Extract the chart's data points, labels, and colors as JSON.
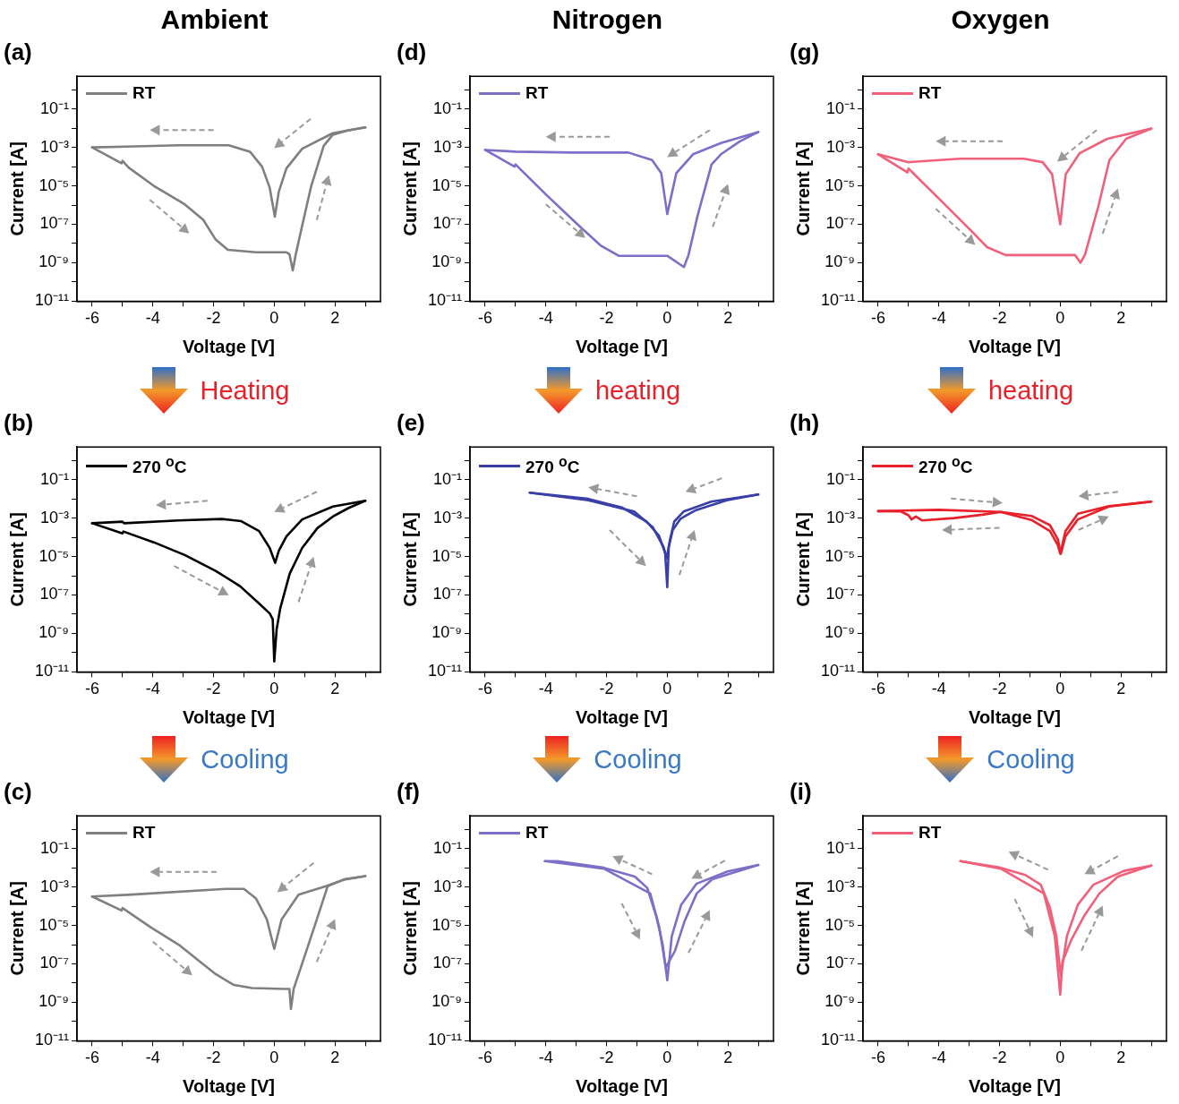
{
  "chart_data": [
    {
      "type": "line",
      "title": "(a)",
      "xlabel": "Voltage [V]",
      "ylabel": "Current [A]",
      "annotations": [
        "Ambient"
      ],
      "log": "y",
      "legend": "top left",
      "xlim": [
        -6.5,
        3.5
      ],
      "xticks": [
        -6,
        {
          "value": -5,
          "label": null
        },
        -4,
        {
          "value": -3,
          "label": null
        },
        -2,
        {
          "value": -1,
          "label": null
        },
        0,
        {
          "value": 1,
          "label": null
        },
        2,
        {
          "value": 3,
          "label": null
        }
      ],
      "ylim": [
        1e-11,
        5
      ],
      "yticks": [
        {
          "value": 1e-11,
          "label": "10⁻¹¹"
        },
        {
          "value": 1e-10,
          "label": null
        },
        {
          "value": 1e-09,
          "label": "10⁻⁹"
        },
        {
          "value": 1e-08,
          "label": null
        },
        {
          "value": 1e-07,
          "label": "10⁻⁷"
        },
        {
          "value": 1e-06,
          "label": null
        },
        {
          "value": 1e-05,
          "label": "10⁻⁵"
        },
        {
          "value": 0.0001,
          "label": null
        },
        {
          "value": 0.001,
          "label": "10⁻³"
        },
        {
          "value": 0.01,
          "label": null
        },
        {
          "value": 0.1,
          "label": "10⁻¹"
        },
        {
          "value": 1,
          "label": null
        }
      ],
      "series": [
        {
          "name": "RT",
          "color": "#7f7f7f",
          "x": [
            3,
            1.93,
            0.92,
            0.4,
            0.15,
            0.02,
            -0.15,
            -0.4,
            -0.8,
            -1.5,
            -3.15,
            -4.9,
            -6
          ],
          "values": [
            0.011,
            0.0055,
            0.00085,
            8e-05,
            5e-06,
            2.5e-07,
            8e-06,
            0.0001,
            0.0006,
            0.0013,
            0.0013,
            0.0011,
            0.001
          ]
        },
        {
          "color": "#7f7f7f",
          "x": [
            -6,
            -5.03,
            -5,
            -4.8,
            -3.97,
            -2.95,
            -2.34,
            -1.93,
            -1.53,
            -0.6,
            0.4,
            0.5,
            0.61,
            0.71,
            0.92,
            1.22,
            1.63,
            1.93,
            2.44,
            3
          ],
          "values": [
            0.001,
            0.00015,
            0.0002,
            9e-05,
            1e-05,
            1.1e-06,
            1.7e-07,
            1.6e-08,
            4.7e-09,
            3.5e-09,
            3.5e-09,
            2.8e-09,
            4e-10,
            2.8e-09,
            8.5e-08,
            1e-05,
            0.0012,
            0.0046,
            0.0077,
            0.011
          ]
        }
      ]
    },
    {
      "type": "line",
      "title": "(d)",
      "xlabel": "Voltage [V]",
      "ylabel": "Current [A]",
      "annotations": [
        "Nitrogen"
      ],
      "log": "y",
      "legend": "top left",
      "xlim": [
        -6.5,
        3.5
      ],
      "xticks": [
        -6,
        {
          "value": -5,
          "label": null
        },
        -4,
        {
          "value": -3,
          "label": null
        },
        -2,
        {
          "value": -1,
          "label": null
        },
        0,
        {
          "value": 1,
          "label": null
        },
        2,
        {
          "value": 3,
          "label": null
        }
      ],
      "ylim": [
        1e-11,
        5
      ],
      "yticks": [
        {
          "value": 1e-11,
          "label": "10⁻¹¹"
        },
        {
          "value": 1e-10,
          "label": null
        },
        {
          "value": 1e-09,
          "label": "10⁻⁹"
        },
        {
          "value": 1e-08,
          "label": null
        },
        {
          "value": 1e-07,
          "label": "10⁻⁷"
        },
        {
          "value": 1e-06,
          "label": null
        },
        {
          "value": 1e-05,
          "label": "10⁻⁵"
        },
        {
          "value": 0.0001,
          "label": null
        },
        {
          "value": 0.001,
          "label": "10⁻³"
        },
        {
          "value": 0.01,
          "label": null
        },
        {
          "value": 0.1,
          "label": "10⁻¹"
        },
        {
          "value": 1,
          "label": null
        }
      ],
      "series": [
        {
          "name": "RT",
          "color": "#7b6fc8",
          "x": [
            3,
            1.77,
            0.85,
            0.3,
            0,
            -0.2,
            -0.5,
            -1.28,
            -3.1,
            -5,
            -6
          ],
          "values": [
            0.0063,
            0.0017,
            0.00044,
            4.6e-05,
            3.4e-07,
            4.6e-05,
            0.00022,
            0.00054,
            0.00054,
            0.0006,
            0.00074
          ]
        },
        {
          "color": "#7b6fc8",
          "x": [
            -6,
            -5.03,
            -5,
            -4,
            -2.96,
            -2.2,
            -1.6,
            0,
            0.55,
            0.7,
            1,
            1.46,
            1.77,
            2.38,
            3
          ],
          "values": [
            0.00074,
            0.0001,
            0.00013,
            3.6e-06,
            1e-07,
            8e-09,
            2.3e-09,
            2.3e-09,
            6e-10,
            2.5e-09,
            2.8e-07,
            0.00013,
            0.00044,
            0.002,
            0.0063
          ]
        }
      ]
    },
    {
      "type": "line",
      "title": "(g)",
      "xlabel": "Voltage [V]",
      "ylabel": "Current [A]",
      "annotations": [
        "Oxygen"
      ],
      "log": "y",
      "legend": "top left",
      "xlim": [
        -6.5,
        3.5
      ],
      "xticks": [
        -6,
        {
          "value": -5,
          "label": null
        },
        -4,
        {
          "value": -3,
          "label": null
        },
        -2,
        {
          "value": -1,
          "label": null
        },
        0,
        {
          "value": 1,
          "label": null
        },
        2,
        {
          "value": 3,
          "label": null
        }
      ],
      "ylim": [
        1e-11,
        5
      ],
      "yticks": [
        {
          "value": 1e-11,
          "label": "10⁻¹¹"
        },
        {
          "value": 1e-10,
          "label": null
        },
        {
          "value": 1e-09,
          "label": "10⁻⁹"
        },
        {
          "value": 1e-08,
          "label": null
        },
        {
          "value": 1e-07,
          "label": "10⁻⁷"
        },
        {
          "value": 1e-06,
          "label": null
        },
        {
          "value": 1e-05,
          "label": "10⁻⁵"
        },
        {
          "value": 0.0001,
          "label": null
        },
        {
          "value": 0.001,
          "label": "10⁻³"
        },
        {
          "value": 0.01,
          "label": null
        },
        {
          "value": 0.1,
          "label": "10⁻¹"
        },
        {
          "value": 1,
          "label": null
        }
      ],
      "series": [
        {
          "name": "RT",
          "color": "#f0607a",
          "x": [
            3,
            1.55,
            0.64,
            0.18,
            0,
            -0.27,
            -0.58,
            -1.2,
            -3.3,
            -5,
            -6
          ],
          "values": [
            0.0095,
            0.0028,
            0.0005,
            4e-05,
            1e-07,
            4e-05,
            0.00017,
            0.00026,
            0.00026,
            0.00017,
            0.00044
          ]
        },
        {
          "color": "#f0607a",
          "x": [
            -6,
            -5.03,
            -5,
            -3.93,
            -3.02,
            -2.4,
            -1.8,
            0.49,
            0.67,
            0.82,
            1.25,
            1.62,
            2.17,
            3
          ],
          "values": [
            0.00044,
            5e-05,
            8e-05,
            1.7e-06,
            6.3e-08,
            6.3e-09,
            2.5e-09,
            2.5e-09,
            1e-09,
            2.8e-09,
            7.9e-07,
            0.00022,
            0.0028,
            0.0095
          ]
        }
      ]
    },
    {
      "type": "line",
      "title": "(b)",
      "xlabel": "Voltage [V]",
      "ylabel": "Current [A]",
      "annotations": [
        "Heating"
      ],
      "log": "y",
      "legend": "top left",
      "xlim": [
        -6.5,
        3.5
      ],
      "xticks": [
        -6,
        {
          "value": -5,
          "label": null
        },
        -4,
        {
          "value": -3,
          "label": null
        },
        -2,
        {
          "value": -1,
          "label": null
        },
        0,
        {
          "value": 1,
          "label": null
        },
        2,
        {
          "value": 3,
          "label": null
        }
      ],
      "ylim": [
        1e-11,
        5
      ],
      "yticks": [
        {
          "value": 1e-11,
          "label": "10⁻¹¹"
        },
        {
          "value": 1e-10,
          "label": null
        },
        {
          "value": 1e-09,
          "label": "10⁻⁹"
        },
        {
          "value": 1e-08,
          "label": null
        },
        {
          "value": 1e-07,
          "label": "10⁻⁷"
        },
        {
          "value": 1e-06,
          "label": null
        },
        {
          "value": 1e-05,
          "label": "10⁻⁵"
        },
        {
          "value": 0.0001,
          "label": null
        },
        {
          "value": 0.001,
          "label": "10⁻³"
        },
        {
          "value": 0.01,
          "label": null
        },
        {
          "value": 0.1,
          "label": "10⁻¹"
        },
        {
          "value": 1,
          "label": null
        }
      ],
      "series": [
        {
          "name": "270 $^{o}$C",
          "color": "#000000",
          "x": [
            3,
            1.93,
            0.92,
            0.4,
            0.15,
            0.03,
            -0.15,
            -0.5,
            -1.1,
            -1.73,
            -3.15,
            -4.95,
            -5,
            -6
          ],
          "values": [
            0.008,
            0.004,
            0.00085,
            0.00011,
            2e-05,
            4.7e-06,
            2.8e-05,
            0.00021,
            0.0007,
            0.0009,
            0.00076,
            0.00054,
            0.00065,
            0.00054
          ]
        },
        {
          "color": "#000000",
          "x": [
            -6,
            -5,
            -4.97,
            -3.97,
            -2.95,
            -1.93,
            -1.12,
            -0.5,
            -0.15,
            -0.05,
            0,
            0.08,
            0.2,
            0.51,
            0.92,
            1.42,
            1.93,
            2.44,
            3
          ],
          "values": [
            0.00054,
            0.00016,
            0.0002,
            5.5e-05,
            1.2e-05,
            1.8e-06,
            2.8e-07,
            3.6e-08,
            1.1e-08,
            5.5e-09,
            3.5e-11,
            1.7e-09,
            2.1e-08,
            1.3e-06,
            2.8e-05,
            0.0003,
            0.0012,
            0.0033,
            0.008
          ]
        }
      ]
    },
    {
      "type": "line",
      "title": "(e)",
      "xlabel": "Voltage [V]",
      "ylabel": "Current [A]",
      "annotations": [
        "heating"
      ],
      "log": "y",
      "legend": "top left",
      "xlim": [
        -6.5,
        3.5
      ],
      "xticks": [
        -6,
        {
          "value": -5,
          "label": null
        },
        -4,
        {
          "value": -3,
          "label": null
        },
        -2,
        {
          "value": -1,
          "label": null
        },
        0,
        {
          "value": 1,
          "label": null
        },
        2,
        {
          "value": 3,
          "label": null
        }
      ],
      "ylim": [
        1e-11,
        5
      ],
      "yticks": [
        {
          "value": 1e-11,
          "label": "10⁻¹¹"
        },
        {
          "value": 1e-10,
          "label": null
        },
        {
          "value": 1e-09,
          "label": "10⁻⁹"
        },
        {
          "value": 1e-08,
          "label": null
        },
        {
          "value": 1e-07,
          "label": "10⁻⁷"
        },
        {
          "value": 1e-06,
          "label": null
        },
        {
          "value": 1e-05,
          "label": "10⁻⁵"
        },
        {
          "value": 0.0001,
          "label": null
        },
        {
          "value": 0.001,
          "label": "10⁻³"
        },
        {
          "value": 0.01,
          "label": null
        },
        {
          "value": 0.1,
          "label": "10⁻¹"
        },
        {
          "value": 1,
          "label": null
        }
      ],
      "series": [
        {
          "name": "270 $^{o}$C",
          "color": "#3a3fa8",
          "x": [
            3,
            1.96,
            0.95,
            0.44,
            0.18,
            0.05,
            0,
            -0.07,
            -0.27,
            -0.68,
            -1.5,
            -2.6,
            -4.53
          ],
          "values": [
            0.017,
            0.0085,
            0.0026,
            0.00093,
            0.00024,
            3.1e-05,
            2.6e-07,
            1.5e-05,
            0.00012,
            0.00066,
            0.0036,
            0.01,
            0.021
          ]
        },
        {
          "color": "#3a3fa8",
          "x": [
            -4.53,
            -2.6,
            -1.09,
            -0.48,
            -0.12,
            -0.02,
            0.08,
            0.23,
            0.54,
            1.45,
            3
          ],
          "values": [
            0.021,
            0.0085,
            0.0022,
            0.00034,
            3.1e-05,
            8e-06,
            6.3e-05,
            0.00066,
            0.0022,
            0.0072,
            0.017
          ]
        }
      ]
    },
    {
      "type": "line",
      "title": "(h)",
      "xlabel": "Voltage [V]",
      "ylabel": "Current [A]",
      "annotations": [
        "heating"
      ],
      "log": "y",
      "legend": "top left",
      "xlim": [
        -6.5,
        3.5
      ],
      "xticks": [
        -6,
        {
          "value": -5,
          "label": null
        },
        -4,
        {
          "value": -3,
          "label": null
        },
        -2,
        {
          "value": -1,
          "label": null
        },
        0,
        {
          "value": 1,
          "label": null
        },
        2,
        {
          "value": 3,
          "label": null
        }
      ],
      "ylim": [
        1e-11,
        5
      ],
      "yticks": [
        {
          "value": 1e-11,
          "label": "10⁻¹¹"
        },
        {
          "value": 1e-10,
          "label": null
        },
        {
          "value": 1e-09,
          "label": "10⁻⁹"
        },
        {
          "value": 1e-08,
          "label": null
        },
        {
          "value": 1e-07,
          "label": "10⁻⁷"
        },
        {
          "value": 1e-06,
          "label": null
        },
        {
          "value": 1e-05,
          "label": "10⁻⁵"
        },
        {
          "value": 0.0001,
          "label": null
        },
        {
          "value": 0.001,
          "label": "10⁻³"
        },
        {
          "value": 0.01,
          "label": null
        },
        {
          "value": 0.1,
          "label": "10⁻¹"
        },
        {
          "value": 1,
          "label": null
        }
      ],
      "series": [
        {
          "name": "270 $^{o}$C",
          "color": "#e8202a",
          "x": [
            3,
            1.6,
            0.58,
            0.17,
            0.02,
            -0.08,
            -0.34,
            -0.95,
            -1.96,
            -4,
            -6
          ],
          "values": [
            0.0072,
            0.004,
            0.00085,
            0.00011,
            1.4e-05,
            7.9e-05,
            0.00043,
            0.0013,
            0.0021,
            0.0027,
            0.0023
          ]
        },
        {
          "color": "#e8202a",
          "x": [
            -6,
            -5.25,
            -5,
            -4.9,
            -4.76,
            -4.56,
            -3.5,
            -2.57,
            -1.96,
            -0.95,
            -0.34,
            -0.08,
            0,
            0.17,
            0.58,
            1.6,
            3
          ],
          "values": [
            0.0023,
            0.0022,
            0.0014,
            0.00085,
            0.0012,
            0.00076,
            0.001,
            0.0015,
            0.0021,
            0.0008,
            0.00021,
            3.9e-05,
            1.4e-05,
            0.00021,
            0.0017,
            0.0042,
            0.0072
          ]
        }
      ]
    },
    {
      "type": "line",
      "title": "(c)",
      "xlabel": "Voltage [V]",
      "ylabel": "Current [A]",
      "annotations": [
        "Cooling"
      ],
      "log": "y",
      "legend": "top left",
      "xlim": [
        -6.5,
        3.5
      ],
      "xticks": [
        -6,
        {
          "value": -5,
          "label": null
        },
        -4,
        {
          "value": -3,
          "label": null
        },
        -2,
        {
          "value": -1,
          "label": null
        },
        0,
        {
          "value": 1,
          "label": null
        },
        2,
        {
          "value": 3,
          "label": null
        }
      ],
      "ylim": [
        1e-11,
        5
      ],
      "yticks": [
        {
          "value": 1e-11,
          "label": "10⁻¹¹"
        },
        {
          "value": 1e-10,
          "label": null
        },
        {
          "value": 1e-09,
          "label": "10⁻⁹"
        },
        {
          "value": 1e-08,
          "label": null
        },
        {
          "value": 1e-07,
          "label": "10⁻⁷"
        },
        {
          "value": 1e-06,
          "label": null
        },
        {
          "value": 1e-05,
          "label": "10⁻⁵"
        },
        {
          "value": 0.0001,
          "label": null
        },
        {
          "value": 0.001,
          "label": "10⁻³"
        },
        {
          "value": 0.01,
          "label": null
        },
        {
          "value": 0.1,
          "label": "10⁻¹"
        },
        {
          "value": 1,
          "label": null
        }
      ],
      "series": [
        {
          "name": "RT",
          "color": "#808080",
          "x": [
            3,
            2.3,
            1.7,
            0.8,
            0.24,
            0,
            -0.24,
            -0.6,
            -1,
            -1.6,
            -4.7,
            -6
          ],
          "values": [
            0.0037,
            0.0024,
            0.0011,
            0.0004,
            2e-05,
            6e-07,
            2e-05,
            0.00025,
            0.0008,
            0.0008,
            0.0004,
            0.00032
          ]
        },
        {
          "color": "#808080",
          "x": [
            -6,
            -5.03,
            -5,
            -4.06,
            -3.15,
            -1.94,
            -1.33,
            -0.73,
            0.33,
            0.5,
            0.55,
            0.64,
            0.94,
            1.4,
            1.76,
            2.3,
            3
          ],
          "values": [
            0.00032,
            6e-05,
            8e-05,
            7.8e-06,
            1e-06,
            3e-08,
            8e-09,
            5.5e-09,
            5e-09,
            5e-09,
            4.5e-10,
            5e-09,
            1.3e-07,
            2e-05,
            0.0011,
            0.0025,
            0.0037
          ]
        }
      ]
    },
    {
      "type": "line",
      "title": "(f)",
      "xlabel": "Voltage [V]",
      "ylabel": "Current [A]",
      "annotations": [
        "Cooling"
      ],
      "log": "y",
      "legend": "top left",
      "xlim": [
        -6.5,
        3.5
      ],
      "xticks": [
        -6,
        {
          "value": -5,
          "label": null
        },
        -4,
        {
          "value": -3,
          "label": null
        },
        -2,
        {
          "value": -1,
          "label": null
        },
        0,
        {
          "value": 1,
          "label": null
        },
        2,
        {
          "value": 3,
          "label": null
        }
      ],
      "ylim": [
        1e-11,
        5
      ],
      "yticks": [
        {
          "value": 1e-11,
          "label": "10⁻¹¹"
        },
        {
          "value": 1e-10,
          "label": null
        },
        {
          "value": 1e-09,
          "label": "10⁻⁹"
        },
        {
          "value": 1e-08,
          "label": null
        },
        {
          "value": 1e-07,
          "label": "10⁻⁷"
        },
        {
          "value": 1e-06,
          "label": null
        },
        {
          "value": 1e-05,
          "label": "10⁻⁵"
        },
        {
          "value": 0.0001,
          "label": null
        },
        {
          "value": 0.001,
          "label": "10⁻³"
        },
        {
          "value": 0.01,
          "label": null
        },
        {
          "value": 0.1,
          "label": "10⁻¹"
        },
        {
          "value": 1,
          "label": null
        }
      ],
      "series": [
        {
          "name": "RT",
          "color": "#7b6fc8",
          "x": [
            3,
            1.99,
            0.97,
            0.46,
            0.15,
            0,
            -0.15,
            -0.36,
            -0.66,
            -1.07,
            -2.09,
            -3.62,
            -4.03
          ],
          "values": [
            0.014,
            0.0065,
            0.0015,
            0.00012,
            2.8e-06,
            1.4e-08,
            1e-06,
            3e-05,
            0.0009,
            0.0035,
            0.01,
            0.022,
            0.022
          ]
        },
        {
          "color": "#7b6fc8",
          "x": [
            -4.03,
            -2.09,
            -0.56,
            -0.26,
            -0.05,
            0.26,
            0.56,
            0.97,
            1.48,
            3
          ],
          "values": [
            0.022,
            0.009,
            0.00046,
            7.6e-06,
            6.5e-08,
            5e-07,
            1.5e-05,
            0.00046,
            0.0025,
            0.014
          ]
        }
      ]
    },
    {
      "type": "line",
      "title": "(i)",
      "xlabel": "Voltage [V]",
      "ylabel": "Current [A]",
      "annotations": [
        "Cooling"
      ],
      "log": "y",
      "legend": "top left",
      "xlim": [
        -6.5,
        3.5
      ],
      "xticks": [
        -6,
        {
          "value": -5,
          "label": null
        },
        -4,
        {
          "value": -3,
          "label": null
        },
        -2,
        {
          "value": -1,
          "label": null
        },
        0,
        {
          "value": 1,
          "label": null
        },
        2,
        {
          "value": 3,
          "label": null
        }
      ],
      "ylim": [
        1e-11,
        5
      ],
      "yticks": [
        {
          "value": 1e-11,
          "label": "10⁻¹¹"
        },
        {
          "value": 1e-10,
          "label": null
        },
        {
          "value": 1e-09,
          "label": "10⁻⁹"
        },
        {
          "value": 1e-08,
          "label": null
        },
        {
          "value": 1e-07,
          "label": "10⁻⁷"
        },
        {
          "value": 1e-06,
          "label": null
        },
        {
          "value": 1e-05,
          "label": "10⁻⁵"
        },
        {
          "value": 0.0001,
          "label": null
        },
        {
          "value": 0.001,
          "label": "10⁻³"
        },
        {
          "value": 0.01,
          "label": null
        },
        {
          "value": 0.1,
          "label": "10⁻¹"
        },
        {
          "value": 1,
          "label": null
        }
      ],
      "series": [
        {
          "name": "RT",
          "color": "#f0607a",
          "x": [
            3,
            2.1,
            1.09,
            0.58,
            0.22,
            0.02,
            -0.13,
            -0.34,
            -0.64,
            -1.15,
            -1.96,
            -3.29
          ],
          "values": [
            0.013,
            0.0069,
            0.0013,
            0.00012,
            2.8e-06,
            2.3e-08,
            2.8e-06,
            8.3e-05,
            0.0013,
            0.0042,
            0.01,
            0.022
          ]
        },
        {
          "color": "#f0607a",
          "x": [
            -3.29,
            -1.96,
            -0.54,
            -0.18,
            0,
            0.07,
            0.38,
            0.78,
            1.29,
            1.9,
            3
          ],
          "values": [
            0.022,
            0.009,
            0.00046,
            2.8e-06,
            2.5e-09,
            1.3e-07,
            2e-06,
            3e-05,
            0.00046,
            0.0035,
            0.013
          ]
        }
      ]
    }
  ]
}
